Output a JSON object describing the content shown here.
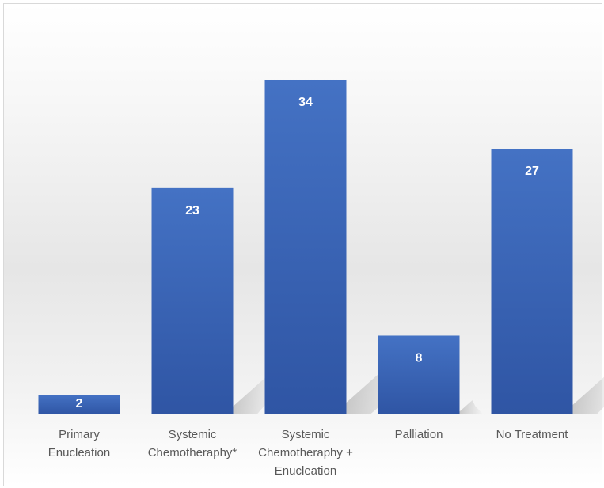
{
  "chart_data": {
    "type": "bar",
    "categories": [
      [
        "Primary",
        "Enucleation"
      ],
      [
        "Systemic",
        "Chemotheraphy*"
      ],
      [
        "Systemic",
        "Chemotheraphy +",
        "Enucleation"
      ],
      [
        "Palliation"
      ],
      [
        "No Treatment"
      ]
    ],
    "values": [
      2,
      23,
      34,
      8,
      27
    ],
    "data_labels": [
      "2",
      "23",
      "34",
      "8",
      "27"
    ],
    "bar_color": "#4472C4",
    "bar_color_dark": "#2F55A4",
    "label_color": "#595959",
    "ylim": [
      0,
      34
    ],
    "grid": false,
    "legend": "none"
  }
}
